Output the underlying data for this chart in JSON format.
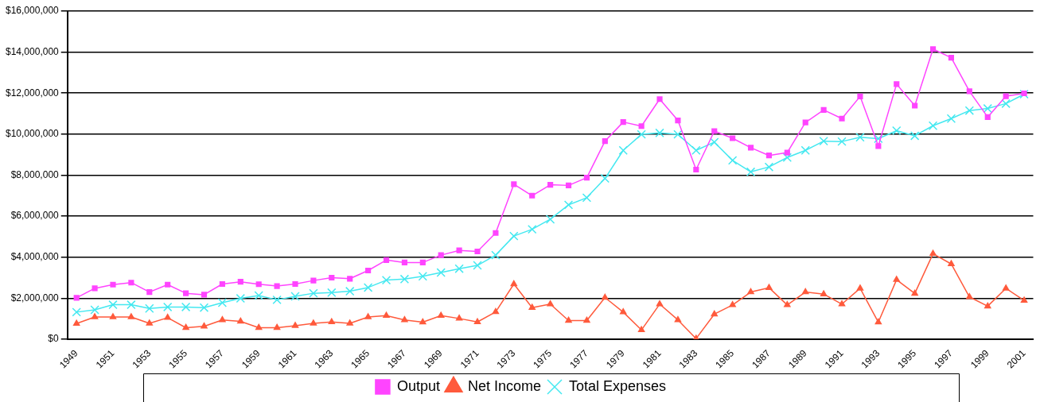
{
  "chart_data": {
    "type": "line",
    "categories": [
      "1949",
      null,
      "1951",
      null,
      "1953",
      null,
      "1955",
      null,
      "1957",
      null,
      "1959",
      null,
      "1961",
      null,
      "1963",
      null,
      "1965",
      null,
      "1967",
      null,
      "1969",
      null,
      "1971",
      null,
      "1973",
      null,
      "1975",
      null,
      "1977",
      null,
      "1979",
      null,
      "1981",
      null,
      "1983",
      null,
      "1985",
      null,
      "1987",
      null,
      "1989",
      null,
      "1991",
      null,
      "1993",
      null,
      "1995",
      null,
      "1997",
      null,
      "1999",
      null,
      "2001"
    ],
    "series": [
      {
        "name": "Output",
        "color": "#ff44ff",
        "marker": "square",
        "values": [
          2020000,
          2480000,
          2660000,
          2760000,
          2300000,
          2660000,
          2240000,
          2170000,
          2690000,
          2800000,
          2680000,
          2590000,
          2690000,
          2860000,
          3000000,
          2950000,
          3350000,
          3860000,
          3740000,
          3740000,
          4100000,
          4330000,
          4280000,
          5180000,
          7560000,
          7000000,
          7530000,
          7500000,
          7880000,
          9660000,
          10590000,
          10390000,
          11710000,
          10670000,
          8270000,
          10150000,
          9800000,
          9340000,
          8960000,
          9100000,
          10570000,
          11180000,
          10760000,
          11840000,
          9420000,
          12440000,
          11390000,
          14150000,
          13730000,
          12090000,
          10830000,
          11850000,
          11990000
        ]
      },
      {
        "name": "Net Income",
        "color": "#ff5a3c",
        "marker": "triangle",
        "values": [
          760000,
          1080000,
          1080000,
          1080000,
          770000,
          1050000,
          560000,
          630000,
          940000,
          870000,
          560000,
          560000,
          660000,
          770000,
          840000,
          770000,
          1080000,
          1150000,
          940000,
          830000,
          1150000,
          1010000,
          840000,
          1330000,
          2690000,
          1540000,
          1710000,
          910000,
          910000,
          2030000,
          1320000,
          450000,
          1710000,
          940000,
          30000,
          1220000,
          1670000,
          2300000,
          2510000,
          1670000,
          2300000,
          2200000,
          1710000,
          2480000,
          830000,
          2900000,
          2230000,
          4170000,
          3670000,
          2060000,
          1610000,
          2480000,
          1890000
        ]
      },
      {
        "name": "Total Expenses",
        "color": "#44e8f0",
        "marker": "cross",
        "values": [
          1320000,
          1430000,
          1680000,
          1680000,
          1500000,
          1570000,
          1570000,
          1540000,
          1780000,
          1990000,
          2130000,
          1920000,
          2090000,
          2240000,
          2270000,
          2340000,
          2520000,
          2880000,
          2930000,
          3070000,
          3250000,
          3440000,
          3600000,
          4100000,
          5030000,
          5360000,
          5850000,
          6550000,
          6900000,
          7840000,
          9210000,
          9990000,
          10060000,
          9990000,
          9210000,
          9610000,
          8720000,
          8160000,
          8400000,
          8860000,
          9210000,
          9660000,
          9640000,
          9850000,
          9780000,
          10170000,
          9920000,
          10410000,
          10760000,
          11150000,
          11250000,
          11490000,
          11950000
        ]
      }
    ],
    "ylim": [
      0,
      16000000
    ],
    "yticks": [
      {
        "value": 0,
        "label": "$0"
      },
      {
        "value": 2000000,
        "label": "$2,000,000"
      },
      {
        "value": 4000000,
        "label": "$4,000,000"
      },
      {
        "value": 6000000,
        "label": "$6,000,000"
      },
      {
        "value": 8000000,
        "label": "$8,000,000"
      },
      {
        "value": 10000000,
        "label": "$10,000,000"
      },
      {
        "value": 12000000,
        "label": "$12,000,000"
      },
      {
        "value": 14000000,
        "label": "$14,000,000"
      },
      {
        "value": 16000000,
        "label": "$16,000,000"
      }
    ],
    "grid": "y",
    "legend": "bottom"
  }
}
